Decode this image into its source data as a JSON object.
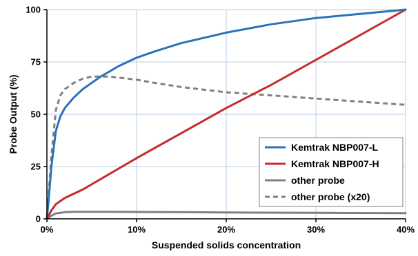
{
  "chart_data": {
    "type": "line",
    "title": "",
    "xlabel": "Suspended solids concentration",
    "ylabel": "Probe Output (%)",
    "xlim": [
      0,
      40
    ],
    "ylim": [
      0,
      100
    ],
    "x_ticks": [
      0,
      10,
      20,
      30,
      40
    ],
    "x_tick_labels": [
      "0%",
      "10%",
      "20%",
      "30%",
      "40%"
    ],
    "y_ticks": [
      0,
      25,
      50,
      75,
      100
    ],
    "y_tick_labels": [
      "0",
      "25",
      "50",
      "75",
      "100"
    ],
    "grid": true,
    "legend_position": "bottom-right",
    "series": [
      {
        "name": "Kemtrak NBP007-L",
        "color": "#2a72b8",
        "style": "solid",
        "x": [
          0,
          0.25,
          0.5,
          1,
          1.5,
          2,
          3,
          4,
          5,
          6,
          8,
          10,
          12,
          15,
          20,
          25,
          30,
          35,
          40
        ],
        "y": [
          0,
          12,
          25,
          42,
          49,
          53,
          58,
          62,
          65,
          68,
          73,
          77,
          80,
          84,
          89,
          93,
          96,
          98,
          100
        ]
      },
      {
        "name": "Kemtrak NBP007-H",
        "color": "#c62a2a",
        "style": "solid",
        "x": [
          0,
          0.5,
          1,
          2,
          4,
          6,
          8,
          10,
          15,
          20,
          25,
          30,
          35,
          40
        ],
        "y": [
          0,
          4,
          7,
          10,
          14,
          19,
          24,
          29,
          41,
          53,
          64,
          76,
          88,
          100
        ]
      },
      {
        "name": "other probe",
        "color": "#808080",
        "style": "solid",
        "x": [
          0,
          0.5,
          1,
          2,
          3,
          5,
          7,
          10,
          15,
          20,
          30,
          40
        ],
        "y": [
          0,
          1.5,
          2.6,
          3.2,
          3.35,
          3.4,
          3.38,
          3.3,
          3.2,
          3.05,
          2.85,
          2.7
        ]
      },
      {
        "name": "other probe (x20)",
        "color": "#808080",
        "style": "dashed",
        "x": [
          0,
          0.25,
          0.5,
          1,
          1.5,
          2,
          3,
          4,
          5,
          6,
          7,
          8,
          10,
          12,
          15,
          20,
          25,
          30,
          35,
          40
        ],
        "y": [
          0,
          15,
          30,
          52,
          59,
          62,
          65,
          67,
          68,
          68,
          68,
          67.5,
          66.5,
          65,
          63,
          60.5,
          59,
          57.5,
          56,
          54.5
        ]
      }
    ]
  }
}
